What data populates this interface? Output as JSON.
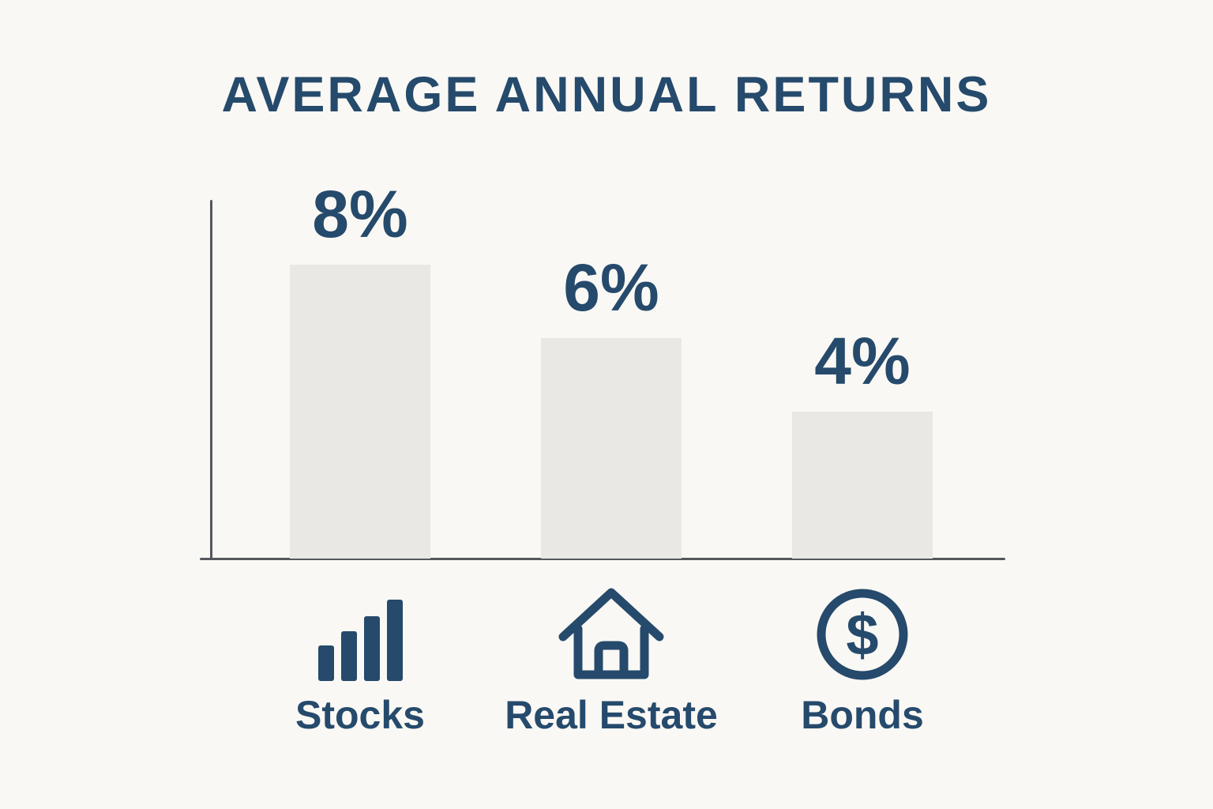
{
  "chart_data": {
    "type": "bar",
    "title": "AVERAGE ANNUAL RETURNS",
    "categories": [
      "Stocks",
      "Real Estate",
      "Bonds"
    ],
    "values": [
      8,
      6,
      4
    ],
    "value_labels": [
      "8%",
      "6%",
      "4%"
    ],
    "unit": "percent annual return",
    "ylim": [
      0,
      8
    ],
    "grid": false,
    "legend_position": "none",
    "axis_labels_shown": false,
    "category_icons": [
      "ascending-bars-icon",
      "house-icon",
      "dollar-circle-icon"
    ]
  },
  "icons": {
    "dollar_symbol": "$"
  },
  "colors": {
    "background": "#faf8f4",
    "accent_blue": "#254a6c",
    "bar_fill": "#e9e8e5",
    "axis_line": "#54585c"
  }
}
